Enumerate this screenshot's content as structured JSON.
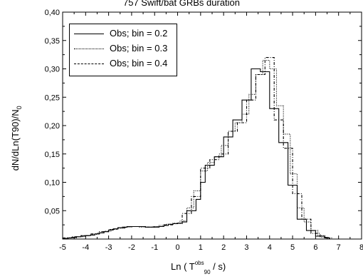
{
  "chart_data": {
    "type": "line",
    "title": "757 Swift/bat GRBs duration",
    "ylabel": "dN/dLn(T90)/N",
    "ylabel_sub": "0",
    "xlabel": {
      "prefix": "Ln ( T",
      "sup": "obs",
      "sub": "90",
      "suffix": " / s)"
    },
    "xlim": [
      -5,
      8
    ],
    "ylim": [
      0,
      0.4
    ],
    "xticks": [
      "-5",
      "-4",
      "-3",
      "-2",
      "-1",
      "0",
      "1",
      "2",
      "3",
      "4",
      "5",
      "6",
      "7",
      "8"
    ],
    "yticks": [
      "0,05",
      "0,10",
      "0,15",
      "0,20",
      "0,25",
      "0,30",
      "0,35",
      "0,40"
    ],
    "legend_position": "top-left",
    "series": [
      {
        "name": "Obs; bin = 0.2",
        "style": "solid",
        "color": "#000000",
        "x": [
          -5.0,
          -4.8,
          -4.6,
          -4.4,
          -4.2,
          -4.0,
          -3.8,
          -3.6,
          -3.4,
          -3.2,
          -3.0,
          -2.8,
          -2.6,
          -2.4,
          -2.2,
          -2.0,
          -1.8,
          -1.6,
          -1.4,
          -1.2,
          -1.0,
          -0.8,
          -0.6,
          -0.4,
          -0.2,
          0.0,
          0.2,
          0.4,
          0.6,
          0.8,
          1.0,
          1.2,
          1.4,
          1.6,
          1.8,
          2.0,
          2.2,
          2.4,
          2.6,
          2.8,
          3.0,
          3.2,
          3.4,
          3.6,
          3.8,
          4.0,
          4.2,
          4.4,
          4.6,
          4.8,
          5.0,
          5.2,
          5.4,
          5.6,
          5.8,
          6.0,
          6.2,
          6.4
        ],
        "values": [
          0.001,
          0.002,
          0.003,
          0.004,
          0.005,
          0.006,
          0.007,
          0.009,
          0.011,
          0.013,
          0.016,
          0.018,
          0.02,
          0.021,
          0.022,
          0.022,
          0.022,
          0.022,
          0.021,
          0.021,
          0.021,
          0.022,
          0.024,
          0.026,
          0.027,
          0.028,
          0.03,
          0.05,
          0.05,
          0.07,
          0.1,
          0.13,
          0.13,
          0.145,
          0.145,
          0.18,
          0.18,
          0.21,
          0.21,
          0.245,
          0.245,
          0.3,
          0.3,
          0.295,
          0.295,
          0.23,
          0.23,
          0.17,
          0.17,
          0.095,
          0.095,
          0.035,
          0.035,
          0.015,
          0.015,
          0.005,
          0.005,
          0.002
        ]
      },
      {
        "name": "Obs; bin = 0.3",
        "style": "dotted",
        "color": "#000000",
        "x": [
          -5.0,
          -4.7,
          -4.4,
          -4.1,
          -3.8,
          -3.5,
          -3.2,
          -2.9,
          -2.6,
          -2.3,
          -2.0,
          -1.7,
          -1.4,
          -1.1,
          -0.8,
          -0.5,
          -0.2,
          0.1,
          0.4,
          0.7,
          1.0,
          1.3,
          1.6,
          1.9,
          2.2,
          2.5,
          2.8,
          3.1,
          3.4,
          3.7,
          4.0,
          4.3,
          4.6,
          4.9,
          5.2,
          5.5,
          5.8,
          6.1,
          6.4
        ],
        "values": [
          0.001,
          0.002,
          0.004,
          0.006,
          0.008,
          0.011,
          0.014,
          0.017,
          0.019,
          0.021,
          0.022,
          0.021,
          0.021,
          0.022,
          0.024,
          0.026,
          0.028,
          0.032,
          0.055,
          0.085,
          0.12,
          0.135,
          0.145,
          0.165,
          0.19,
          0.205,
          0.22,
          0.255,
          0.29,
          0.315,
          0.3,
          0.235,
          0.185,
          0.115,
          0.055,
          0.03,
          0.015,
          0.006,
          0.002
        ]
      },
      {
        "name": "Obs; bin = 0.4",
        "style": "dashdot",
        "color": "#000000",
        "x": [
          -5.0,
          -4.6,
          -4.2,
          -3.8,
          -3.4,
          -3.0,
          -2.6,
          -2.2,
          -1.8,
          -1.4,
          -1.0,
          -0.6,
          -0.2,
          0.2,
          0.6,
          1.0,
          1.4,
          1.8,
          2.2,
          2.6,
          3.0,
          3.4,
          3.8,
          4.2,
          4.6,
          5.0,
          5.4,
          5.8,
          6.2
        ],
        "values": [
          0.002,
          0.004,
          0.006,
          0.009,
          0.013,
          0.017,
          0.02,
          0.022,
          0.022,
          0.021,
          0.022,
          0.025,
          0.027,
          0.045,
          0.075,
          0.125,
          0.14,
          0.15,
          0.19,
          0.205,
          0.245,
          0.29,
          0.32,
          0.21,
          0.16,
          0.08,
          0.035,
          0.01,
          0.003
        ]
      }
    ]
  }
}
